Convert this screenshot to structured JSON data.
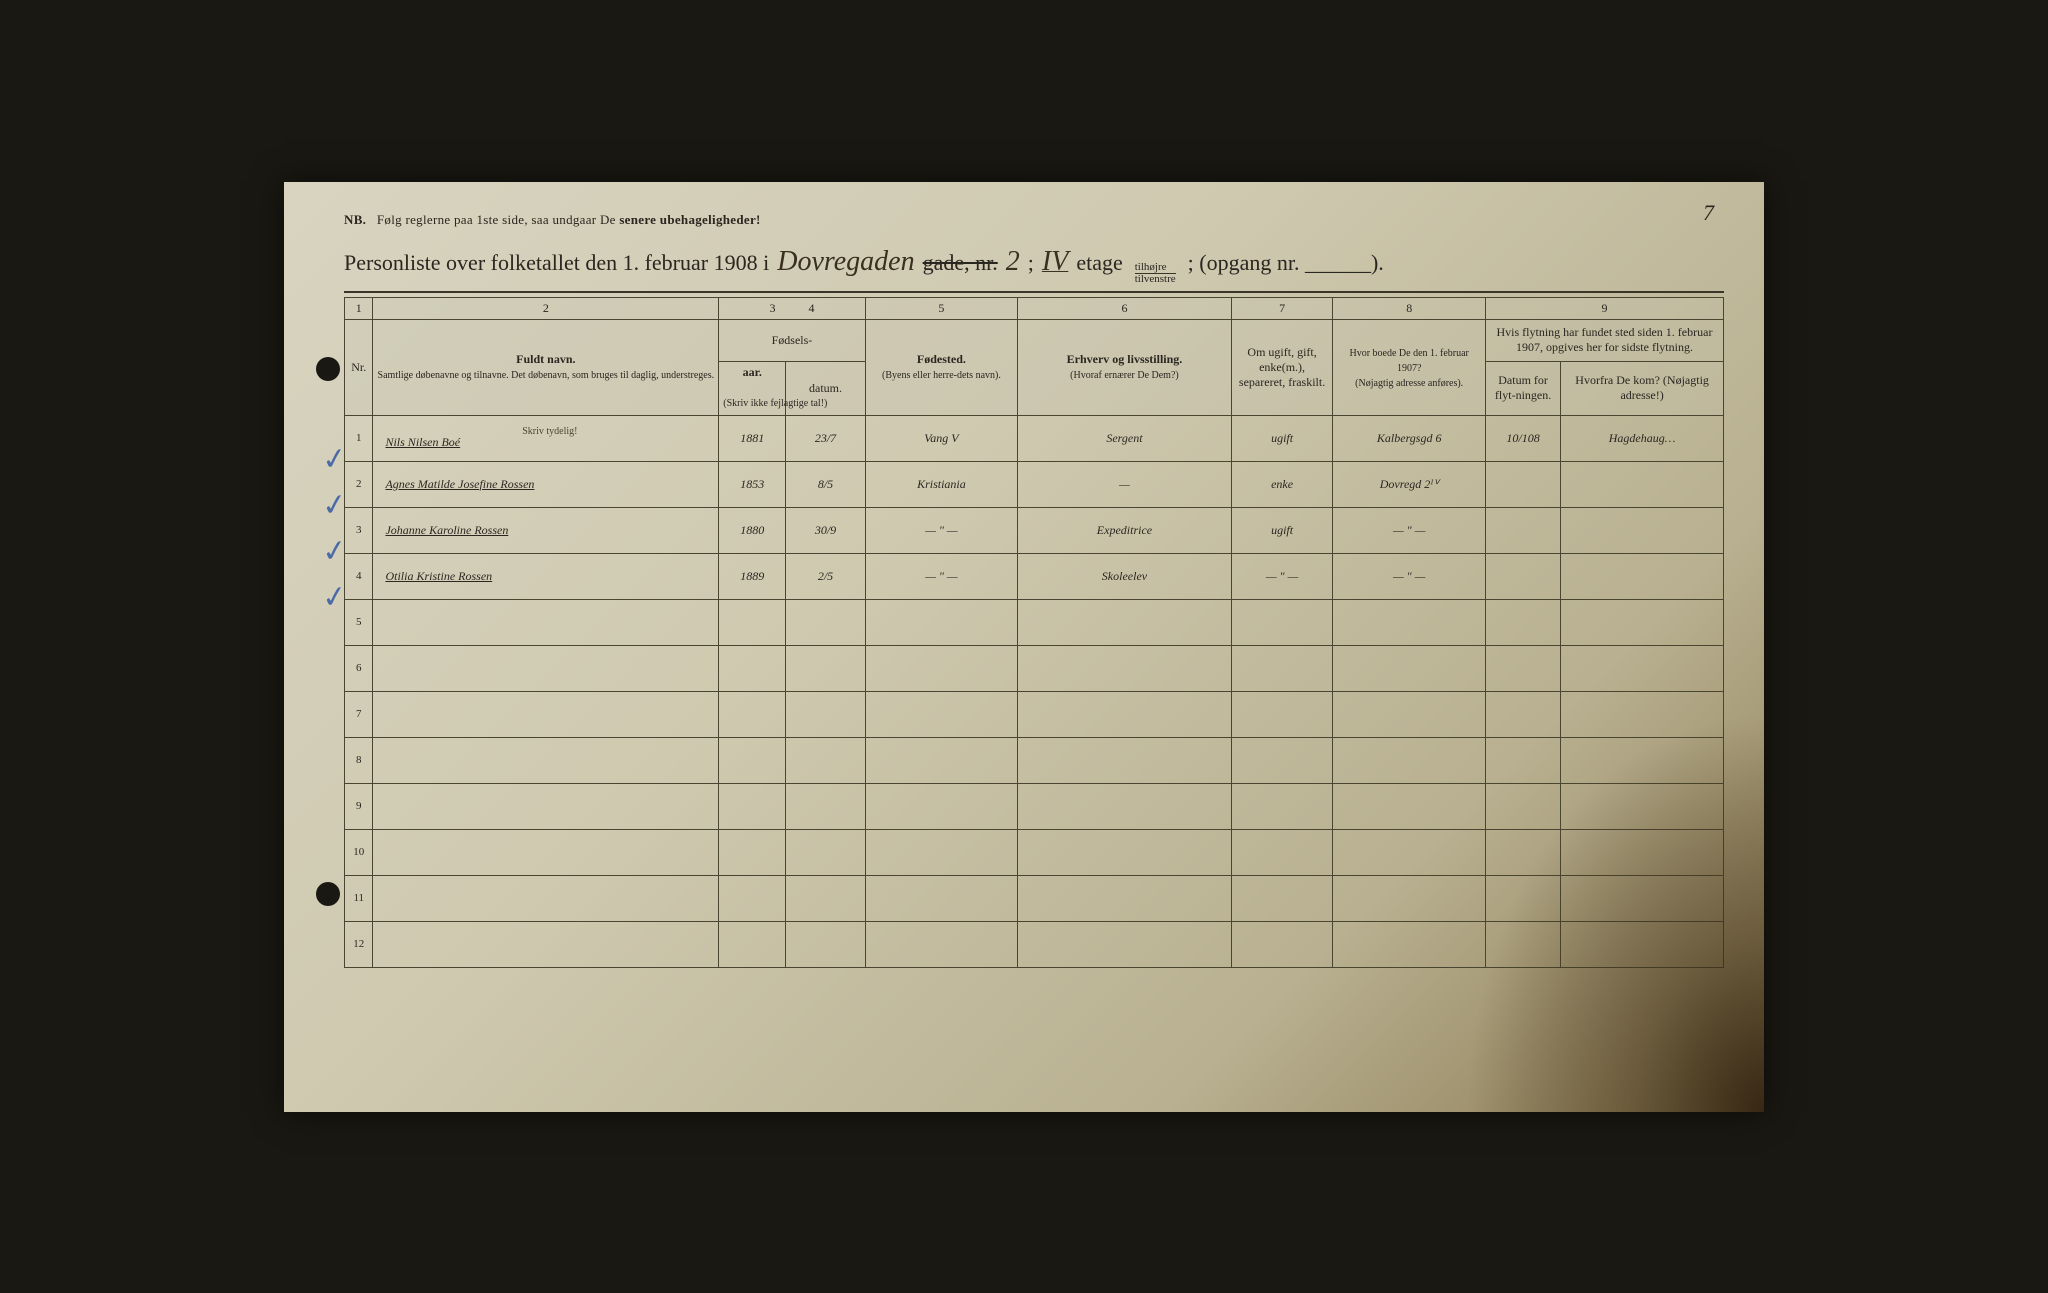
{
  "page": {
    "corner_number": "7",
    "nb_prefix": "NB.",
    "nb_text": "Følg reglerne paa 1ste side, saa undgaar De",
    "nb_bold": "senere ubehageligheder!",
    "title_prefix": "Personliste over folketallet den 1. februar 1908 i",
    "street_hand": "Dovregaden",
    "gade_struck": "gade, nr.",
    "street_num": "2",
    "semicolon": ";",
    "floor_hand": "IV",
    "etage": "etage",
    "tilh": "tilhøjre",
    "tilv": "tilvenstre",
    "opgang": "; (opgang nr. ______).",
    "background_color": "#d8d4c0",
    "border_color": "#4a4530",
    "text_color": "#2a2620",
    "hand_color": "#3a3020",
    "check_color": "#4a6aa8"
  },
  "columns": {
    "nums": [
      "1",
      "2",
      "3",
      "4",
      "5",
      "6",
      "7",
      "8",
      "9"
    ],
    "c1": "Nr.",
    "c2_main": "Fuldt navn.",
    "c2_sub": "Samtlige døbenavne og tilnavne. Det døbenavn, som bruges til daglig, understreges.",
    "c34_top": "Fødsels-",
    "c3": "aar.",
    "c4": "datum.",
    "c34_note": "(Skriv ikke fejlagtige tal!)",
    "c5_main": "Fødested.",
    "c5_sub": "(Byens eller herre-dets navn).",
    "c6_main": "Erhverv og livsstilling.",
    "c6_sub": "(Hvoraf ernærer De Dem?)",
    "c7": "Om ugift, gift, enke(m.), separeret, fraskilt.",
    "c8_main": "Hvor boede De den 1. februar 1907?",
    "c8_sub": "(Nøjagtig adresse anføres).",
    "c9_top": "Hvis flytning har fundet sted siden 1. februar 1907, opgives her for sidste flytning.",
    "c9a": "Datum for flyt-ningen.",
    "c9b": "Hvorfra De kom? (Nøjagtig adresse!)",
    "skriv_tydelig": "Skriv tydelig!",
    "widths": {
      "c1": 28,
      "c2": 340,
      "c3": 66,
      "c4": 78,
      "c5": 150,
      "c6": 210,
      "c7": 100,
      "c8": 150,
      "c9a": 74,
      "c9b": 160
    }
  },
  "rows": [
    {
      "n": "1",
      "check": true,
      "name": "Nils Nilsen Boé",
      "aar": "1881",
      "datum": "23/7",
      "sted": "Vang V",
      "erhverv": "Sergent",
      "status": "ugift",
      "adr1907": "Kalbergsgd 6",
      "flyt_dato": "10/108",
      "flyt_fra": "Hagdehaug…"
    },
    {
      "n": "2",
      "check": true,
      "name": "Agnes Matilde Josefine Rossen",
      "aar": "1853",
      "datum": "8/5",
      "sted": "Kristiania",
      "erhverv": "—",
      "status": "enke",
      "adr1907": "Dovregd 2ᴵⱽ",
      "flyt_dato": "",
      "flyt_fra": ""
    },
    {
      "n": "3",
      "check": true,
      "name": "Johanne Karoline Rossen",
      "aar": "1880",
      "datum": "30/9",
      "sted": "— \" —",
      "erhverv": "Expeditrice",
      "status": "ugift",
      "adr1907": "— \" —",
      "flyt_dato": "",
      "flyt_fra": ""
    },
    {
      "n": "4",
      "check": true,
      "name": "Otilia Kristine Rossen",
      "aar": "1889",
      "datum": "2/5",
      "sted": "— \" —",
      "erhverv": "Skoleelev",
      "status": "— \" —",
      "adr1907": "— \" —",
      "flyt_dato": "",
      "flyt_fra": ""
    },
    {
      "n": "5",
      "check": false,
      "name": "",
      "aar": "",
      "datum": "",
      "sted": "",
      "erhverv": "",
      "status": "",
      "adr1907": "",
      "flyt_dato": "",
      "flyt_fra": ""
    },
    {
      "n": "6",
      "check": false,
      "name": "",
      "aar": "",
      "datum": "",
      "sted": "",
      "erhverv": "",
      "status": "",
      "adr1907": "",
      "flyt_dato": "",
      "flyt_fra": ""
    },
    {
      "n": "7",
      "check": false,
      "name": "",
      "aar": "",
      "datum": "",
      "sted": "",
      "erhverv": "",
      "status": "",
      "adr1907": "",
      "flyt_dato": "",
      "flyt_fra": ""
    },
    {
      "n": "8",
      "check": false,
      "name": "",
      "aar": "",
      "datum": "",
      "sted": "",
      "erhverv": "",
      "status": "",
      "adr1907": "",
      "flyt_dato": "",
      "flyt_fra": ""
    },
    {
      "n": "9",
      "check": false,
      "name": "",
      "aar": "",
      "datum": "",
      "sted": "",
      "erhverv": "",
      "status": "",
      "adr1907": "",
      "flyt_dato": "",
      "flyt_fra": ""
    },
    {
      "n": "10",
      "check": false,
      "name": "",
      "aar": "",
      "datum": "",
      "sted": "",
      "erhverv": "",
      "status": "",
      "adr1907": "",
      "flyt_dato": "",
      "flyt_fra": ""
    },
    {
      "n": "11",
      "check": false,
      "name": "",
      "aar": "",
      "datum": "",
      "sted": "",
      "erhverv": "",
      "status": "",
      "adr1907": "",
      "flyt_dato": "",
      "flyt_fra": ""
    },
    {
      "n": "12",
      "check": false,
      "name": "",
      "aar": "",
      "datum": "",
      "sted": "",
      "erhverv": "",
      "status": "",
      "adr1907": "",
      "flyt_dato": "",
      "flyt_fra": ""
    }
  ]
}
